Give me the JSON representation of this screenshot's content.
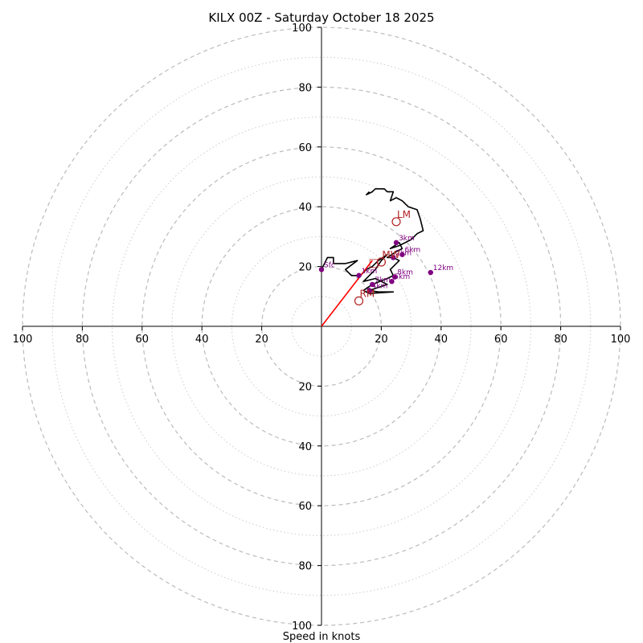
{
  "chart_data": {
    "type": "hodograph",
    "title": "KILX 00Z - Saturday October 18 2025",
    "xlabel": "Speed in knots",
    "axis_range": [
      -100,
      100
    ],
    "ring_values": [
      10,
      20,
      30,
      40,
      50,
      60,
      70,
      80,
      90,
      100
    ],
    "major_rings": [
      20,
      40,
      60,
      80,
      100
    ],
    "tick_labels": {
      "x_left": [
        "100",
        "80",
        "60",
        "40",
        "20"
      ],
      "x_right": [
        "20",
        "40",
        "60",
        "80",
        "100"
      ],
      "y_up": [
        "20",
        "40",
        "60",
        "80",
        "100"
      ],
      "y_down": [
        "20",
        "40",
        "60",
        "80",
        "100"
      ]
    },
    "tick_values": {
      "x_left": [
        -100,
        -80,
        -60,
        -40,
        -20
      ],
      "x_right": [
        20,
        40,
        60,
        80,
        100
      ],
      "y_up": [
        20,
        40,
        60,
        80,
        100
      ],
      "y_down": [
        -20,
        -40,
        -60,
        -80,
        -100
      ]
    },
    "hodograph_trace": [
      [
        0,
        19
      ],
      [
        1,
        21
      ],
      [
        2,
        23
      ],
      [
        4,
        23
      ],
      [
        4,
        21
      ],
      [
        5,
        21
      ],
      [
        6,
        21
      ],
      [
        8,
        21
      ],
      [
        12,
        22
      ],
      [
        8,
        19
      ],
      [
        10,
        17
      ],
      [
        13,
        17
      ],
      [
        15,
        19
      ],
      [
        17,
        20
      ],
      [
        19,
        22
      ],
      [
        22,
        24
      ],
      [
        20,
        22
      ],
      [
        18,
        19
      ],
      [
        16,
        17
      ],
      [
        14,
        15
      ],
      [
        18,
        16
      ],
      [
        20,
        15
      ],
      [
        22,
        14
      ],
      [
        19,
        13
      ],
      [
        16,
        12
      ],
      [
        19,
        11.5
      ],
      [
        24,
        11.5
      ],
      [
        16,
        11
      ],
      [
        14,
        12
      ],
      [
        17,
        14
      ],
      [
        22,
        16
      ],
      [
        24,
        17
      ],
      [
        23,
        19
      ],
      [
        26,
        22
      ],
      [
        24,
        23
      ],
      [
        22,
        23
      ],
      [
        25,
        25
      ],
      [
        27,
        26
      ],
      [
        26,
        28
      ],
      [
        23,
        26
      ],
      [
        26,
        27
      ],
      [
        30,
        29
      ],
      [
        32,
        31
      ],
      [
        34,
        32
      ],
      [
        33,
        36
      ],
      [
        32,
        39
      ],
      [
        29,
        40
      ],
      [
        27,
        42
      ],
      [
        25,
        43
      ],
      [
        23,
        42
      ],
      [
        24,
        45
      ],
      [
        22,
        45
      ],
      [
        21,
        46
      ],
      [
        18,
        46
      ],
      [
        17,
        45
      ],
      [
        15,
        44
      ],
      [
        16,
        45
      ]
    ],
    "height_markers": [
      {
        "label": "Sfc",
        "u": 0,
        "v": 19
      },
      {
        "label": "1km",
        "u": 12.5,
        "v": 17
      },
      {
        "label": "2km",
        "u": 24,
        "v": 23
      },
      {
        "label": "3km",
        "u": 25,
        "v": 28
      },
      {
        "label": "4km",
        "u": 16,
        "v": 12
      },
      {
        "label": "5km",
        "u": 23.5,
        "v": 15
      },
      {
        "label": "6km",
        "u": 27,
        "v": 24
      },
      {
        "label": "7km",
        "u": 17,
        "v": 14
      },
      {
        "label": "8km",
        "u": 24.5,
        "v": 16.5
      },
      {
        "label": "12km",
        "u": 36.5,
        "v": 18
      }
    ],
    "storm_motions": [
      {
        "label": "LM",
        "u": 25,
        "v": 35
      },
      {
        "label": "MW",
        "u": 20,
        "v": 21.5
      },
      {
        "label": "RM",
        "u": 12.5,
        "v": 8.5
      }
    ],
    "mean_marker": {
      "label": "□",
      "u": 17.5,
      "v": 20
    },
    "shear_vector": {
      "from": [
        0,
        0
      ],
      "to": [
        17,
        22
      ]
    },
    "colors": {
      "trace": "#000000",
      "markers": "#800080",
      "storm_motion": "#b22222",
      "shear_vector": "#ff0000",
      "ring_major": "#bbbbbb",
      "ring_minor": "#cccccc",
      "axis": "#000000"
    }
  }
}
